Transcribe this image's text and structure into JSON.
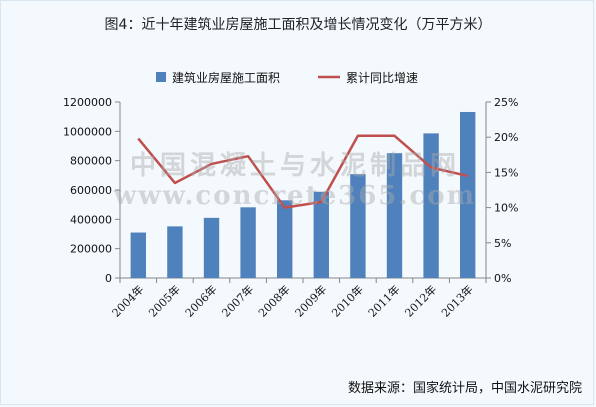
{
  "title": "图4：近十年建筑业房屋施工面积及增长情况变化（万平方米）",
  "source": "数据来源：国家统计局，中国水泥研究院",
  "watermark": {
    "line1": "中国混凝土与水泥制品网",
    "line2": "www.concrete365.com"
  },
  "colors": {
    "bar": "#4f81bd",
    "line": "#c0504d",
    "axis": "#868686"
  },
  "chart_data": {
    "type": "bar",
    "categories": [
      "2004年",
      "2005年",
      "2006年",
      "2007年",
      "2008年",
      "2009年",
      "2010年",
      "2011年",
      "2012年",
      "2013年"
    ],
    "series": [
      {
        "name": "建筑业房屋施工面积",
        "type": "bar",
        "axis": "left",
        "values": [
          310000,
          352000,
          410000,
          482000,
          530000,
          588000,
          708000,
          851000,
          986000,
          1132000
        ]
      },
      {
        "name": "累计同比增速",
        "type": "line",
        "axis": "right",
        "values": [
          0.198,
          0.135,
          0.162,
          0.173,
          0.1,
          0.108,
          0.202,
          0.202,
          0.157,
          0.145
        ]
      }
    ],
    "ylim": [
      0,
      1200000
    ],
    "y_ticks": [
      "0",
      "200000",
      "400000",
      "600000",
      "800000",
      "1000000",
      "1200000"
    ],
    "y2lim": [
      0,
      0.25
    ],
    "y2_ticks": [
      "0%",
      "5%",
      "10%",
      "15%",
      "20%",
      "25%"
    ],
    "legend_position": "top",
    "grid": false
  }
}
